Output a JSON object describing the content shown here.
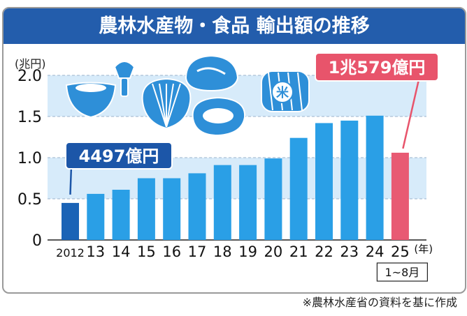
{
  "title": "農林水産物・食品 輸出額の推移",
  "source": "※農林水産省の資料を基に作成",
  "colors": {
    "title_bg": "#235dac",
    "bar": "#2a9fe6",
    "bar_first": "#1a63b6",
    "bar_last": "#e85a73",
    "band": "#d7ebfa",
    "callout_blue": "#1c56a8",
    "callout_red": "#e8546b"
  },
  "chart_data": {
    "type": "bar",
    "title": "農林水産物・食品 輸出額の推移",
    "ylabel": "(兆円)",
    "ylim": [
      0,
      2.0
    ],
    "yticks": [
      "0",
      "0.5",
      "1.0",
      "1.5",
      "2.0"
    ],
    "categories": [
      "2012",
      "13",
      "14",
      "15",
      "16",
      "17",
      "18",
      "19",
      "20",
      "21",
      "22",
      "23",
      "24",
      "25"
    ],
    "xunit": "(年)",
    "last_note": "1~8月",
    "values": [
      0.45,
      0.56,
      0.61,
      0.75,
      0.75,
      0.81,
      0.91,
      0.91,
      0.99,
      1.24,
      1.42,
      1.45,
      1.51,
      1.06
    ],
    "annotations": [
      {
        "text": "4497億円",
        "category": "2012",
        "style": "blue"
      },
      {
        "text": "1兆579億円",
        "category": "25",
        "style": "red"
      }
    ]
  },
  "icons": [
    "rice-bowl-icon",
    "tea-whisk-icon",
    "scallop-icon",
    "wagyu-beef-icon",
    "steak-icon",
    "rice-bale-icon"
  ]
}
